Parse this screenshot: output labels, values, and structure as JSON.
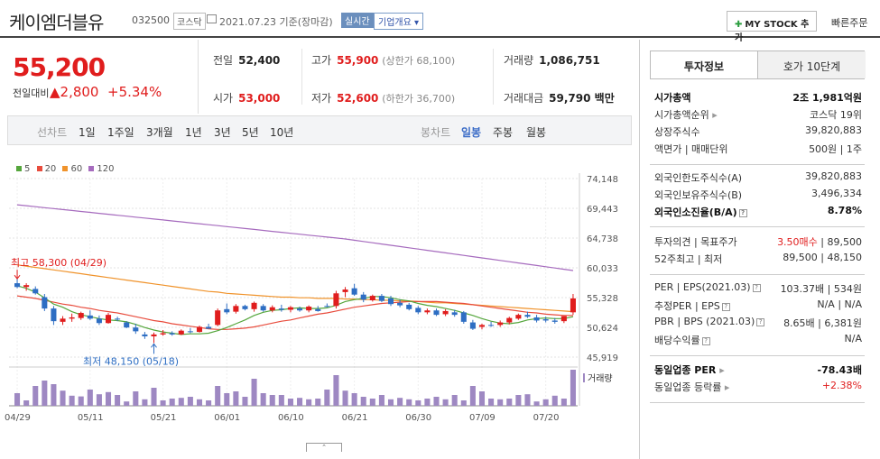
{
  "header": {
    "name": "케이엠더블유",
    "code": "032500",
    "market": "코스닥",
    "date": "2021.07.23 기준(장마감)",
    "realtime": "실시간",
    "company_info": "기업개요",
    "mystock_label": "MY STOCK 추가",
    "quick_order": "빠른주문"
  },
  "price": {
    "current": "55,200",
    "prev_label": "전일대비",
    "change": "▲2,800",
    "change_pct": "+5.34%"
  },
  "stats": {
    "prev_close": {
      "label": "전일",
      "value": "52,400"
    },
    "high": {
      "label": "고가",
      "value": "55,900",
      "sub": "(상한가 68,100)"
    },
    "volume": {
      "label": "거래량",
      "value": "1,086,751"
    },
    "open": {
      "label": "시가",
      "value": "53,000"
    },
    "low": {
      "label": "저가",
      "value": "52,600",
      "sub": "(하한가 36,700)"
    },
    "amount": {
      "label": "거래대금",
      "value": "59,790 백만"
    }
  },
  "period_bar": {
    "label": "선차트",
    "periods": [
      "1일",
      "1주일",
      "3개월",
      "1년",
      "3년",
      "5년",
      "10년"
    ],
    "candle_label": "봉차트",
    "candle_types": [
      "일봉",
      "주봉",
      "월봉"
    ],
    "active_candle": "일봉"
  },
  "colors": {
    "up": "#e01d1d",
    "down": "#2e6ec3",
    "ma5": "#55a63c",
    "ma20": "#e84c3d",
    "ma60": "#f0932b",
    "ma120": "#a66bbe",
    "volume": "#9e88c2"
  },
  "chart_data": {
    "type": "candlestick",
    "legend": [
      "5",
      "20",
      "60",
      "120"
    ],
    "ylim": [
      45919,
      74148
    ],
    "y_ticks": [
      "74,148",
      "69,443",
      "64,738",
      "60,033",
      "55,328",
      "50,624",
      "45,919"
    ],
    "x_tick_labels": [
      "04/29",
      "05/11",
      "05/21",
      "06/01",
      "06/10",
      "06/21",
      "06/30",
      "07/09",
      "07/20"
    ],
    "x_tick_index": [
      0,
      8,
      16,
      23,
      30,
      37,
      44,
      51,
      58
    ],
    "high_label": "최고 58,300 (04/29)",
    "low_label": "최저 48,150 (05/18)",
    "volume_label": "거래량",
    "candles": [
      [
        57600,
        58300,
        56800,
        57000
      ],
      [
        57000,
        57600,
        56400,
        57300
      ],
      [
        56700,
        57100,
        55800,
        56000
      ],
      [
        55400,
        55900,
        53200,
        53600
      ],
      [
        53600,
        54000,
        51000,
        51600
      ],
      [
        51500,
        52400,
        51000,
        52000
      ],
      [
        52000,
        52800,
        51500,
        52200
      ],
      [
        52100,
        53100,
        51800,
        52900
      ],
      [
        52500,
        53300,
        51800,
        52000
      ],
      [
        52000,
        52500,
        51000,
        51300
      ],
      [
        51300,
        52900,
        51200,
        52600
      ],
      [
        52000,
        52300,
        51600,
        51900
      ],
      [
        51400,
        51600,
        50500,
        50600
      ],
      [
        50600,
        51200,
        49600,
        50000
      ],
      [
        49500,
        49900,
        48800,
        49200
      ],
      [
        49200,
        49800,
        48150,
        49500
      ],
      [
        49500,
        50200,
        49300,
        49700
      ],
      [
        49700,
        50000,
        49300,
        49500
      ],
      [
        49500,
        50300,
        49400,
        50100
      ],
      [
        50000,
        50500,
        49700,
        49900
      ],
      [
        49900,
        50900,
        49800,
        50700
      ],
      [
        50700,
        51200,
        50400,
        50400
      ],
      [
        51000,
        53600,
        50800,
        53300
      ],
      [
        53500,
        54400,
        52700,
        53000
      ],
      [
        53100,
        54300,
        52800,
        54000
      ],
      [
        54000,
        54200,
        53300,
        53500
      ],
      [
        53500,
        54700,
        53100,
        54500
      ],
      [
        54000,
        54300,
        53100,
        53300
      ],
      [
        53300,
        54100,
        53000,
        53800
      ],
      [
        53600,
        54200,
        53100,
        53400
      ],
      [
        53400,
        54000,
        53000,
        53800
      ],
      [
        53600,
        53900,
        53100,
        53300
      ],
      [
        53300,
        54100,
        53000,
        53900
      ],
      [
        53500,
        54000,
        53100,
        53200
      ],
      [
        54000,
        54400,
        53800,
        53900
      ],
      [
        54000,
        56400,
        53600,
        56000
      ],
      [
        56200,
        57000,
        55400,
        56600
      ],
      [
        56800,
        57500,
        55600,
        55800
      ],
      [
        55800,
        56200,
        54600,
        55000
      ],
      [
        54900,
        55800,
        54700,
        55600
      ],
      [
        55600,
        55900,
        54600,
        54800
      ],
      [
        55200,
        55600,
        54000,
        54300
      ],
      [
        54500,
        55000,
        53800,
        54100
      ],
      [
        54200,
        54500,
        53300,
        53500
      ],
      [
        53700,
        54000,
        52700,
        53000
      ],
      [
        53000,
        53600,
        52700,
        53300
      ],
      [
        53300,
        53600,
        52400,
        52600
      ],
      [
        52700,
        53500,
        52400,
        53200
      ],
      [
        53000,
        53400,
        52300,
        52600
      ],
      [
        53000,
        53200,
        51200,
        51500
      ],
      [
        51400,
        51800,
        50200,
        50400
      ],
      [
        50700,
        51200,
        50300,
        51000
      ],
      [
        51000,
        51500,
        50700,
        50900
      ],
      [
        51000,
        51700,
        50700,
        51400
      ],
      [
        51400,
        52300,
        51100,
        52100
      ],
      [
        52000,
        52800,
        51800,
        52600
      ],
      [
        52600,
        53100,
        52100,
        52300
      ],
      [
        52200,
        52600,
        51400,
        51700
      ],
      [
        51900,
        52300,
        51400,
        51700
      ],
      [
        51700,
        52100,
        51200,
        51500
      ],
      [
        51600,
        52400,
        51300,
        52400
      ],
      [
        53000,
        55900,
        52600,
        55200
      ]
    ],
    "volumes": [
      35,
      15,
      55,
      70,
      60,
      42,
      28,
      26,
      45,
      32,
      38,
      30,
      12,
      40,
      18,
      50,
      15,
      20,
      22,
      25,
      18,
      15,
      55,
      35,
      40,
      25,
      75,
      35,
      30,
      30,
      20,
      22,
      18,
      20,
      45,
      85,
      42,
      35,
      25,
      20,
      30,
      18,
      22,
      18,
      15,
      20,
      25,
      18,
      30,
      15,
      55,
      40,
      20,
      18,
      20,
      30,
      32,
      12,
      18,
      28,
      20,
      100
    ],
    "ma5": [
      57200,
      56800,
      56200,
      55300,
      54300,
      53800,
      53100,
      52600,
      52300,
      52000,
      51800,
      51700,
      51500,
      51100,
      50600,
      50200,
      49900,
      49700,
      49500,
      49600,
      49600,
      49700,
      50100,
      50600,
      51200,
      51800,
      52500,
      53000,
      53300,
      53400,
      53600,
      53700,
      53600,
      53600,
      53700,
      54100,
      54700,
      55000,
      55200,
      55500,
      55500,
      55300,
      55000,
      54800,
      54400,
      54100,
      53900,
      53600,
      53300,
      52900,
      52500,
      52000,
      51600,
      51300,
      51200,
      51400,
      51800,
      52000,
      52100,
      52000,
      52000,
      52300
    ],
    "ma20": [
      55600,
      55400,
      55200,
      54900,
      54600,
      54300,
      54100,
      53800,
      53600,
      53300,
      53100,
      52900,
      52600,
      52300,
      52000,
      51700,
      51500,
      51200,
      51000,
      50800,
      50600,
      50400,
      50300,
      50300,
      50400,
      50500,
      50700,
      51000,
      51300,
      51600,
      51800,
      52100,
      52400,
      52700,
      52900,
      53200,
      53500,
      53800,
      54000,
      54200,
      54400,
      54500,
      54600,
      54700,
      54700,
      54700,
      54700,
      54600,
      54500,
      54400,
      54200,
      54000,
      53800,
      53600,
      53400,
      53200,
      53000,
      52900,
      52700,
      52600,
      52500,
      52500
    ],
    "ma60": [
      60500,
      60300,
      60100,
      59900,
      59700,
      59500,
      59300,
      59100,
      58900,
      58700,
      58500,
      58300,
      58100,
      57900,
      57700,
      57500,
      57300,
      57100,
      56900,
      56700,
      56500,
      56300,
      56200,
      56000,
      55900,
      55800,
      55700,
      55600,
      55500,
      55400,
      55400,
      55300,
      55300,
      55200,
      55200,
      55200,
      55100,
      55100,
      55000,
      55000,
      54900,
      54900,
      54800,
      54800,
      54700,
      54600,
      54500,
      54500,
      54400,
      54300,
      54200,
      54100,
      54000,
      53900,
      53800,
      53700,
      53600,
      53500,
      53400,
      53300,
      53200,
      53100
    ],
    "ma120": [
      70000,
      69850,
      69700,
      69550,
      69400,
      69250,
      69100,
      68950,
      68800,
      68650,
      68500,
      68350,
      68200,
      68050,
      67900,
      67750,
      67600,
      67450,
      67300,
      67150,
      67000,
      66850,
      66700,
      66550,
      66400,
      66250,
      66100,
      65950,
      65800,
      65650,
      65500,
      65350,
      65200,
      65050,
      64900,
      64750,
      64600,
      64400,
      64200,
      64000,
      63800,
      63600,
      63400,
      63200,
      63000,
      62800,
      62600,
      62400,
      62200,
      62000,
      61800,
      61600,
      61400,
      61200,
      61000,
      60800,
      60600,
      60400,
      60200,
      60000,
      59800,
      59600
    ]
  },
  "side": {
    "tab_info": "투자정보",
    "tab_orderbook": "호가 10단계",
    "rows1": [
      {
        "k": "시가총액",
        "v": "2조 1,981억원"
      },
      {
        "k": "시가총액순위",
        "v": "코스닥 19위"
      },
      {
        "k": "상장주식수",
        "v": "39,820,883"
      },
      {
        "k": "액면가 | 매매단위",
        "v": "500원 | 1주"
      }
    ],
    "rows2": [
      {
        "k": "외국인한도주식수(A)",
        "v": "39,820,883"
      },
      {
        "k": "외국인보유주식수(B)",
        "v": "3,496,334"
      },
      {
        "k": "외국인소진율(B/A)",
        "v": "8.78%"
      }
    ],
    "rows3": [
      {
        "k": "투자의견 | 목표주가",
        "v": "3.50매수",
        "v2": "89,500"
      },
      {
        "k": "52주최고 | 최저",
        "v": "89,500",
        "v2": "48,150"
      }
    ],
    "rows4": [
      {
        "k": "PER | EPS(2021.03)",
        "v": "103.37배 | 534원"
      },
      {
        "k": "추정PER | EPS",
        "v": "N/A | N/A"
      },
      {
        "k": "PBR | BPS (2021.03)",
        "v": "8.65배 | 6,381원"
      },
      {
        "k": "배당수익률",
        "v": "N/A"
      }
    ],
    "rows5": [
      {
        "k": "동일업종 PER",
        "v": "-78.43배"
      },
      {
        "k": "동일업종 등락률",
        "v": "+2.38%"
      }
    ]
  }
}
